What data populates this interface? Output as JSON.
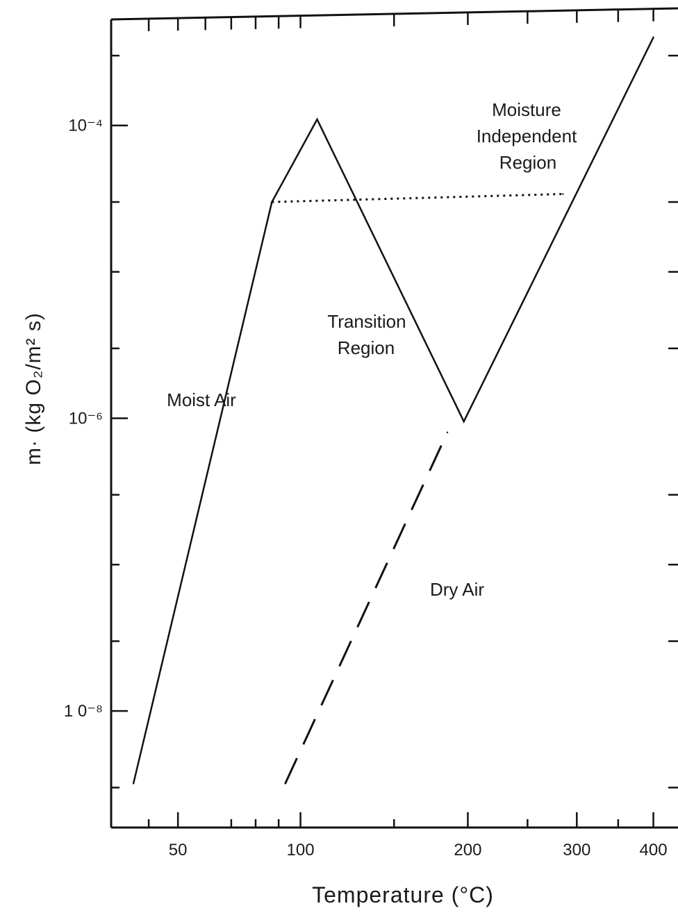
{
  "chart_data": {
    "type": "line",
    "xlabel": "Temperature (°C)",
    "ylabel": "m· (kg O₂/m² s)",
    "xscale": "reciprocal-temperature",
    "yscale": "log",
    "xlim": [
      28,
      440
    ],
    "ylim": [
      1.6e-09,
      0.00053
    ],
    "x_ticks": [
      {
        "value": 50,
        "label": "50"
      },
      {
        "value": 100,
        "label": "100"
      },
      {
        "value": 200,
        "label": "200"
      },
      {
        "value": 300,
        "label": "300"
      },
      {
        "value": 400,
        "label": "400"
      }
    ],
    "y_ticks": [
      {
        "value": 0.0001,
        "label": "10⁻⁴"
      },
      {
        "value": 1e-06,
        "label": "10⁻⁶"
      },
      {
        "value": 1e-08,
        "label": "1 0⁻⁸"
      }
    ],
    "series": [
      {
        "name": "Moist Air",
        "style": "solid",
        "x": [
          35,
          87,
          108,
          197,
          400
        ],
        "y": [
          3.2e-09,
          3e-05,
          0.00011,
          9.5e-07,
          0.0004
        ]
      },
      {
        "name": "Dry Air",
        "style": "dashed",
        "x": [
          93,
          185
        ],
        "y": [
          3.2e-09,
          8e-07
        ]
      },
      {
        "name": "",
        "style": "dotted",
        "x": [
          87,
          285
        ],
        "y": [
          3e-05,
          3.4e-05
        ]
      }
    ],
    "annotations": [
      {
        "text": "Moist Air"
      },
      {
        "text": "Dry Air"
      },
      {
        "text": "Transition"
      },
      {
        "text": "Region"
      },
      {
        "text": "Moisture"
      },
      {
        "text": "Independent"
      },
      {
        "text": "Region"
      }
    ],
    "grid": false,
    "legend": "none"
  }
}
